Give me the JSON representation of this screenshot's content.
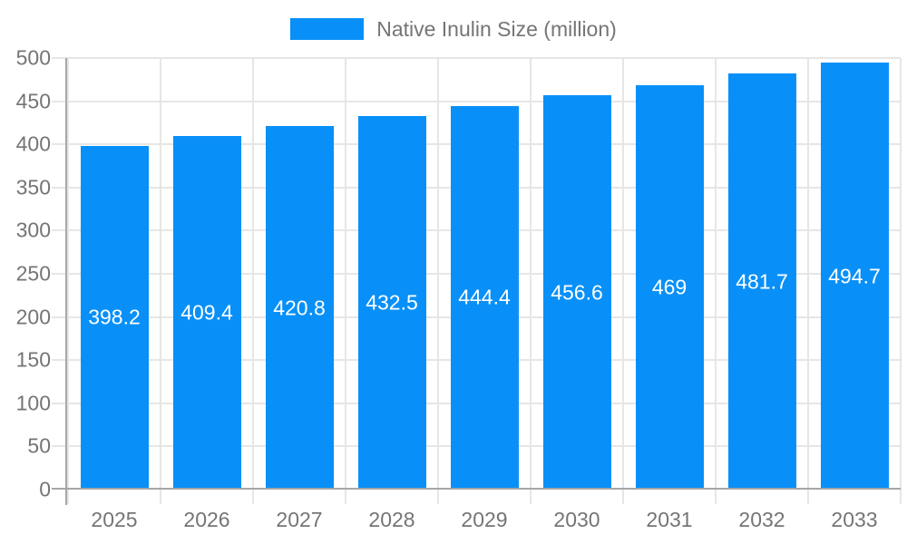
{
  "legend": {
    "label": "Native Inulin Size (million)"
  },
  "chart_data": {
    "type": "bar",
    "title": "",
    "legend": "Native Inulin Size (million)",
    "legend_position": "top-center",
    "categories": [
      "2025",
      "2026",
      "2027",
      "2028",
      "2029",
      "2030",
      "2031",
      "2032",
      "2033"
    ],
    "series": [
      {
        "name": "Native Inulin Size (million)",
        "values": [
          398.2,
          409.4,
          420.8,
          432.5,
          444.4,
          456.6,
          469,
          481.7,
          494.7
        ],
        "value_labels": [
          "398.2",
          "409.4",
          "420.8",
          "432.5",
          "444.4",
          "456.6",
          "469",
          "481.7",
          "494.7"
        ]
      }
    ],
    "xlabel": "",
    "ylabel": "",
    "ylim": [
      0,
      500
    ],
    "ytick_step": 50,
    "grid": true,
    "colors": {
      "bar": "#0890f8",
      "axis": "#a6a6a6",
      "grid": "#e6e6e6",
      "tick_label": "#757575",
      "value_label": "#ffffff"
    }
  }
}
